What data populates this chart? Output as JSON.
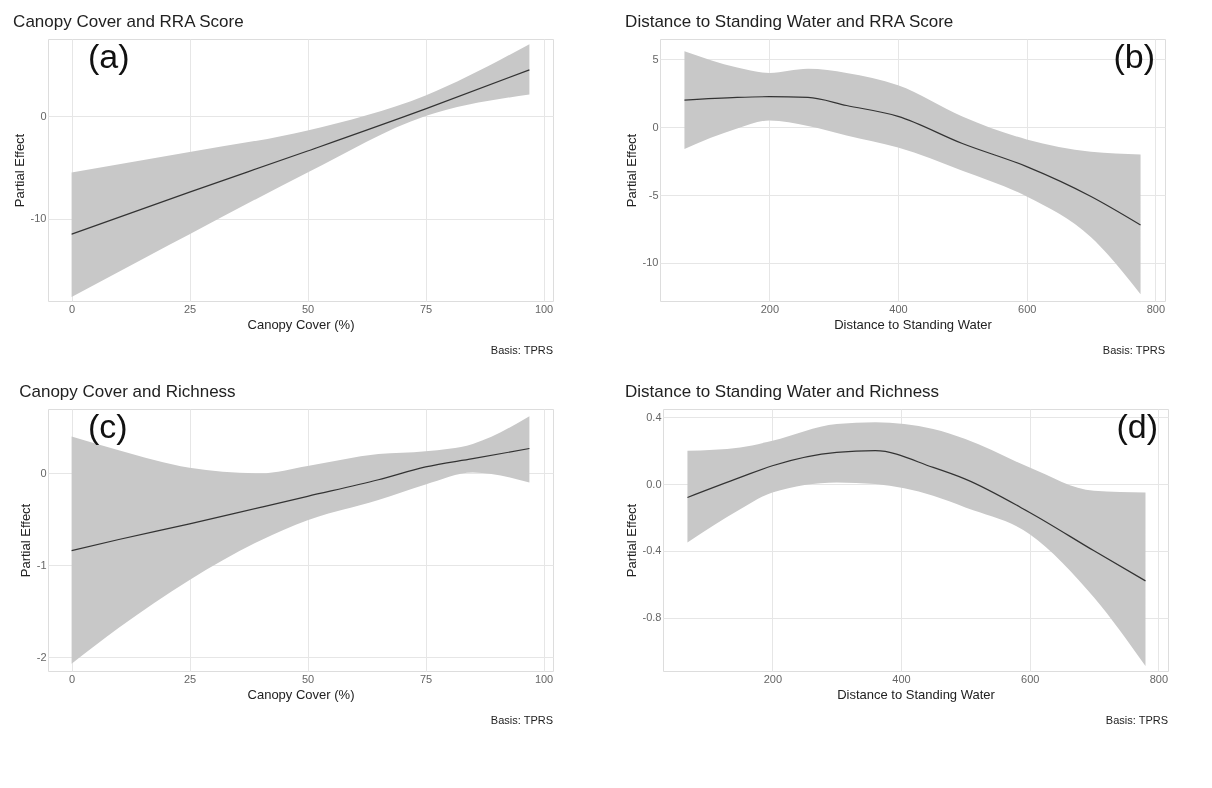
{
  "chart_data": [
    {
      "type": "line",
      "title": "Canopy Cover and RRA Score",
      "xlabel": "Canopy Cover (%)",
      "ylabel": "Partial Effect",
      "annotations": [
        "(a)",
        "Basis: TPRS"
      ],
      "xlim": [
        -5,
        102
      ],
      "xticks": [
        0,
        25,
        50,
        75,
        100
      ],
      "ylim": [
        -18,
        7.5
      ],
      "yticks": [
        -10,
        0
      ],
      "grid": true,
      "series": [
        {
          "color": "#333333",
          "x": [
            0,
            25,
            50,
            75,
            97
          ],
          "values": [
            -11.5,
            -7.4,
            -3.4,
            0.7,
            4.5
          ],
          "lower": [
            -17.6,
            -11.5,
            -5.5,
            0,
            2.1
          ],
          "upper": [
            -5.5,
            -3.5,
            -1.4,
            2.0,
            7.0
          ]
        }
      ]
    },
    {
      "type": "line",
      "title": "Distance to Standing Water and RRA Score",
      "xlabel": "Distance to Standing Water",
      "ylabel": "Partial Effect",
      "annotations": [
        "(b)",
        "Basis: TPRS"
      ],
      "xlim": [
        30,
        815
      ],
      "xticks": [
        200,
        400,
        600,
        800
      ],
      "ylim": [
        -12.8,
        6.5
      ],
      "yticks": [
        -10,
        -5,
        0,
        5
      ],
      "grid": true,
      "series": [
        {
          "color": "#333333",
          "x": [
            68,
            150,
            200,
            260,
            320,
            400,
            500,
            600,
            700,
            777
          ],
          "values": [
            2.0,
            2.2,
            2.25,
            2.2,
            1.6,
            0.8,
            -1.2,
            -2.9,
            -5.1,
            -7.2
          ],
          "lower": [
            -1.6,
            -0.1,
            0.5,
            0.1,
            -0.6,
            -1.5,
            -3.2,
            -5.1,
            -8.1,
            -12.3
          ],
          "upper": [
            5.6,
            4.4,
            4.0,
            4.3,
            4.0,
            3.1,
            0.8,
            -0.9,
            -1.8,
            -2.0
          ]
        }
      ]
    },
    {
      "type": "line",
      "title": "Canopy Cover and Richness",
      "xlabel": "Canopy Cover (%)",
      "ylabel": "Partial Effect",
      "annotations": [
        "(c)",
        "Basis: TPRS"
      ],
      "xlim": [
        -5,
        102
      ],
      "xticks": [
        0,
        25,
        50,
        75,
        100
      ],
      "ylim": [
        -2.15,
        0.7
      ],
      "yticks": [
        -2,
        -1,
        0
      ],
      "grid": true,
      "series": [
        {
          "color": "#333333",
          "x": [
            0,
            10,
            25,
            40,
            50,
            65,
            75,
            85,
            97
          ],
          "values": [
            -0.84,
            -0.72,
            -0.55,
            -0.37,
            -0.25,
            -0.07,
            0.07,
            0.16,
            0.27
          ],
          "lower": [
            -2.07,
            -1.68,
            -1.16,
            -0.73,
            -0.51,
            -0.29,
            -0.12,
            0.01,
            -0.1
          ],
          "upper": [
            0.4,
            0.25,
            0.06,
            0.0,
            0.08,
            0.21,
            0.24,
            0.32,
            0.62
          ]
        }
      ]
    },
    {
      "type": "line",
      "title": "Distance to Standing Water and Richness",
      "xlabel": "Distance to Standing Water",
      "ylabel": "Partial Effect",
      "annotations": [
        "(d)",
        "Basis: TPRS"
      ],
      "xlim": [
        30,
        815
      ],
      "xticks": [
        200,
        400,
        600,
        800
      ],
      "ylim": [
        -1.12,
        0.45
      ],
      "yticks": [
        {
          "value": -0.8,
          "label": "-0.8"
        },
        {
          "value": -0.4,
          "label": "-0.4"
        },
        {
          "value": 0,
          "label": "0.0"
        },
        {
          "value": 0.4,
          "label": "0.4"
        }
      ],
      "grid": true,
      "series": [
        {
          "color": "#333333",
          "x": [
            68,
            150,
            200,
            300,
            360,
            450,
            500,
            600,
            700,
            780
          ],
          "values": [
            -0.08,
            0.04,
            0.11,
            0.19,
            0.2,
            0.1,
            0.03,
            -0.17,
            -0.4,
            -0.58
          ],
          "lower": [
            -0.35,
            -0.15,
            -0.05,
            0.01,
            0.0,
            -0.07,
            -0.14,
            -0.3,
            -0.68,
            -1.09
          ],
          "upper": [
            0.2,
            0.22,
            0.26,
            0.36,
            0.37,
            0.33,
            0.27,
            0.1,
            -0.04,
            -0.05
          ]
        }
      ]
    }
  ]
}
